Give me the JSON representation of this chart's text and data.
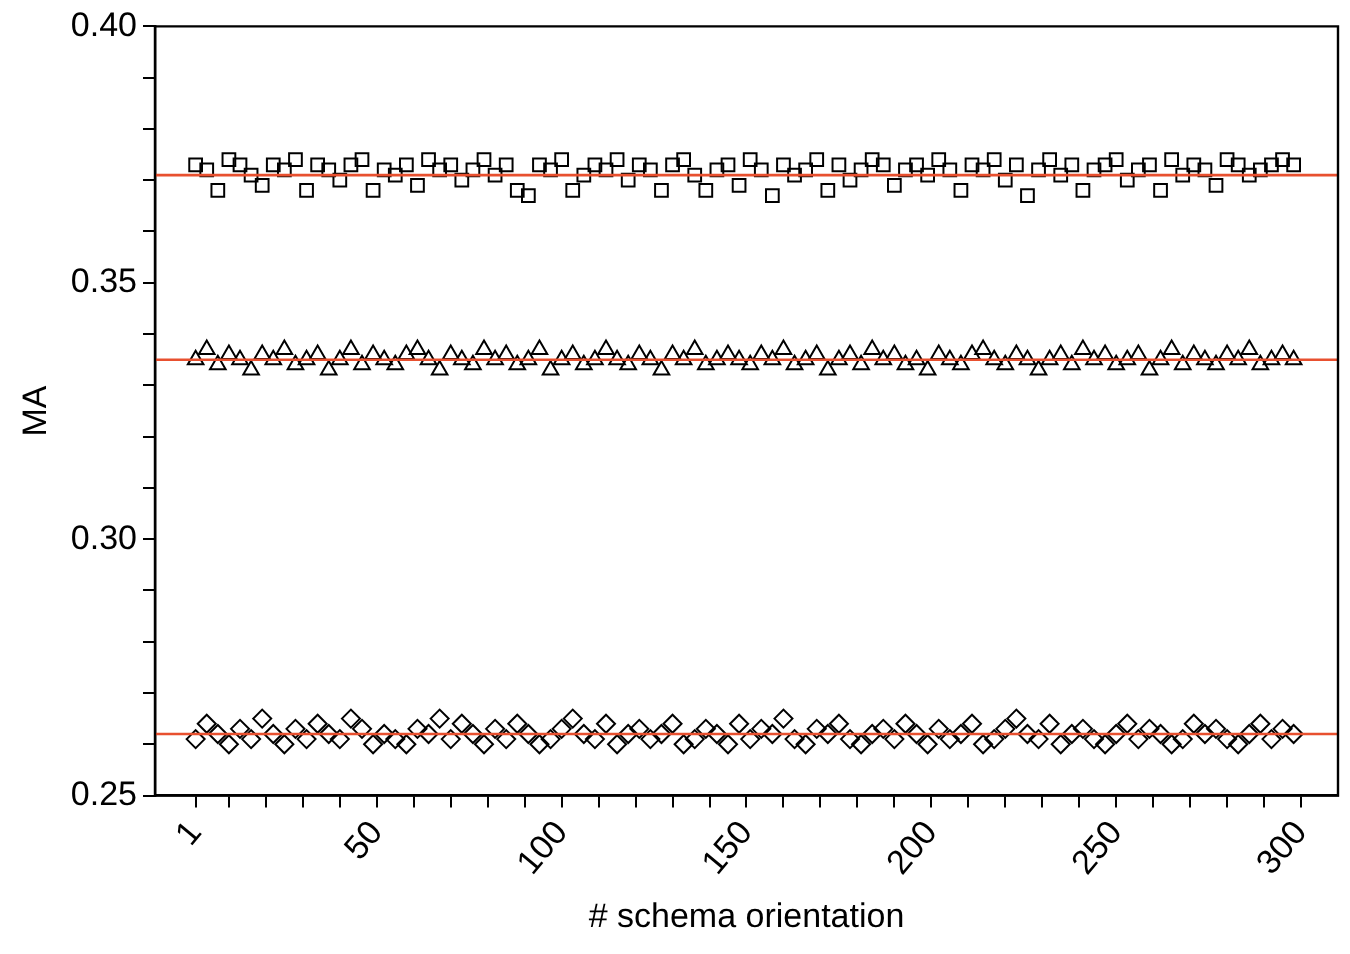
{
  "chart_data": {
    "type": "scatter",
    "xlabel": "# schema orientation",
    "ylabel": "MA",
    "x": [
      1,
      4,
      7,
      10,
      13,
      16,
      19,
      22,
      25,
      28,
      31,
      34,
      37,
      40,
      43,
      46,
      49,
      52,
      55,
      58,
      61,
      64,
      67,
      70,
      73,
      76,
      79,
      82,
      85,
      88,
      91,
      94,
      97,
      100,
      103,
      106,
      109,
      112,
      115,
      118,
      121,
      124,
      127,
      130,
      133,
      136,
      139,
      142,
      145,
      148,
      151,
      154,
      157,
      160,
      163,
      166,
      169,
      172,
      175,
      178,
      181,
      184,
      187,
      190,
      193,
      196,
      199,
      202,
      205,
      208,
      211,
      214,
      217,
      220,
      223,
      226,
      229,
      232,
      235,
      238,
      241,
      244,
      247,
      250,
      253,
      256,
      259,
      262,
      265,
      268,
      271,
      274,
      277,
      280,
      283,
      286,
      289,
      292,
      295,
      298
    ],
    "series": [
      {
        "color": "#000000",
        "marker": "square",
        "values": [
          0.373,
          0.372,
          0.368,
          0.374,
          0.373,
          0.371,
          0.369,
          0.373,
          0.372,
          0.374,
          0.368,
          0.373,
          0.372,
          0.37,
          0.373,
          0.374,
          0.368,
          0.372,
          0.371,
          0.373,
          0.369,
          0.374,
          0.372,
          0.373,
          0.37,
          0.372,
          0.374,
          0.371,
          0.373,
          0.368,
          0.367,
          0.373,
          0.372,
          0.374,
          0.368,
          0.371,
          0.373,
          0.372,
          0.374,
          0.37,
          0.373,
          0.372,
          0.368,
          0.373,
          0.374,
          0.371,
          0.368,
          0.372,
          0.373,
          0.369,
          0.374,
          0.372,
          0.367,
          0.373,
          0.371,
          0.372,
          0.374,
          0.368,
          0.373,
          0.37,
          0.372,
          0.374,
          0.373,
          0.369,
          0.372,
          0.373,
          0.371,
          0.374,
          0.372,
          0.368,
          0.373,
          0.372,
          0.374,
          0.37,
          0.373,
          0.367,
          0.372,
          0.374,
          0.371,
          0.373,
          0.368,
          0.372,
          0.373,
          0.374,
          0.37,
          0.372,
          0.373,
          0.368,
          0.374,
          0.371,
          0.373,
          0.372,
          0.369,
          0.374,
          0.373,
          0.371,
          0.372,
          0.373,
          0.374,
          0.373
        ]
      },
      {
        "color": "#000000",
        "marker": "triangle",
        "values": [
          0.335,
          0.337,
          0.334,
          0.336,
          0.335,
          0.333,
          0.336,
          0.335,
          0.337,
          0.334,
          0.335,
          0.336,
          0.333,
          0.335,
          0.337,
          0.334,
          0.336,
          0.335,
          0.334,
          0.336,
          0.337,
          0.335,
          0.333,
          0.336,
          0.335,
          0.334,
          0.337,
          0.335,
          0.336,
          0.334,
          0.335,
          0.337,
          0.333,
          0.335,
          0.336,
          0.334,
          0.335,
          0.337,
          0.335,
          0.334,
          0.336,
          0.335,
          0.333,
          0.336,
          0.335,
          0.337,
          0.334,
          0.335,
          0.336,
          0.335,
          0.334,
          0.336,
          0.335,
          0.337,
          0.334,
          0.335,
          0.336,
          0.333,
          0.335,
          0.336,
          0.334,
          0.337,
          0.335,
          0.336,
          0.334,
          0.335,
          0.333,
          0.336,
          0.335,
          0.334,
          0.336,
          0.337,
          0.335,
          0.334,
          0.336,
          0.335,
          0.333,
          0.335,
          0.336,
          0.334,
          0.337,
          0.335,
          0.336,
          0.334,
          0.335,
          0.336,
          0.333,
          0.335,
          0.337,
          0.334,
          0.336,
          0.335,
          0.334,
          0.336,
          0.335,
          0.337,
          0.334,
          0.335,
          0.336,
          0.335
        ]
      },
      {
        "color": "#000000",
        "marker": "diamond",
        "values": [
          0.261,
          0.264,
          0.262,
          0.26,
          0.263,
          0.261,
          0.265,
          0.262,
          0.26,
          0.263,
          0.261,
          0.264,
          0.262,
          0.261,
          0.265,
          0.263,
          0.26,
          0.262,
          0.261,
          0.26,
          0.263,
          0.262,
          0.265,
          0.261,
          0.264,
          0.262,
          0.26,
          0.263,
          0.261,
          0.264,
          0.262,
          0.26,
          0.261,
          0.263,
          0.265,
          0.262,
          0.261,
          0.264,
          0.26,
          0.262,
          0.263,
          0.261,
          0.262,
          0.264,
          0.26,
          0.261,
          0.263,
          0.262,
          0.26,
          0.264,
          0.261,
          0.263,
          0.262,
          0.265,
          0.261,
          0.26,
          0.263,
          0.262,
          0.264,
          0.261,
          0.26,
          0.262,
          0.263,
          0.261,
          0.264,
          0.262,
          0.26,
          0.263,
          0.261,
          0.262,
          0.264,
          0.26,
          0.261,
          0.263,
          0.265,
          0.262,
          0.261,
          0.264,
          0.26,
          0.262,
          0.263,
          0.261,
          0.26,
          0.262,
          0.264,
          0.261,
          0.263,
          0.262,
          0.26,
          0.261,
          0.264,
          0.262,
          0.263,
          0.261,
          0.26,
          0.262,
          0.264,
          0.261,
          0.263,
          0.262
        ]
      }
    ],
    "ref_lines": [
      {
        "axis": "y",
        "value": 0.371,
        "color": "#e8502f"
      },
      {
        "axis": "y",
        "value": 0.335,
        "color": "#e8502f"
      },
      {
        "axis": "y",
        "value": 0.262,
        "color": "#e8502f"
      }
    ],
    "xlim": [
      -10,
      310
    ],
    "xticks": [
      1,
      {
        "value": 10,
        "label": null
      },
      {
        "value": 20,
        "label": null
      },
      {
        "value": 30,
        "label": null
      },
      {
        "value": 40,
        "label": null
      },
      50,
      {
        "value": 60,
        "label": null
      },
      {
        "value": 70,
        "label": null
      },
      {
        "value": 80,
        "label": null
      },
      {
        "value": 90,
        "label": null
      },
      100,
      {
        "value": 110,
        "label": null
      },
      {
        "value": 120,
        "label": null
      },
      {
        "value": 130,
        "label": null
      },
      {
        "value": 140,
        "label": null
      },
      150,
      {
        "value": 160,
        "label": null
      },
      {
        "value": 170,
        "label": null
      },
      {
        "value": 180,
        "label": null
      },
      {
        "value": 190,
        "label": null
      },
      200,
      {
        "value": 210,
        "label": null
      },
      {
        "value": 220,
        "label": null
      },
      {
        "value": 230,
        "label": null
      },
      {
        "value": 240,
        "label": null
      },
      250,
      {
        "value": 260,
        "label": null
      },
      {
        "value": 270,
        "label": null
      },
      {
        "value": 280,
        "label": null
      },
      {
        "value": 290,
        "label": null
      },
      300
    ],
    "ylim": [
      0.25,
      0.4
    ],
    "yticks": [
      {
        "value": 0.25,
        "label": "0.25"
      },
      {
        "value": 0.26,
        "label": null
      },
      {
        "value": 0.27,
        "label": null
      },
      {
        "value": 0.28,
        "label": null
      },
      {
        "value": 0.29,
        "label": null
      },
      {
        "value": 0.3,
        "label": "0.30"
      },
      {
        "value": 0.31,
        "label": null
      },
      {
        "value": 0.32,
        "label": null
      },
      {
        "value": 0.33,
        "label": null
      },
      {
        "value": 0.34,
        "label": null
      },
      {
        "value": 0.35,
        "label": "0.35"
      },
      {
        "value": 0.36,
        "label": null
      },
      {
        "value": 0.37,
        "label": null
      },
      {
        "value": 0.38,
        "label": null
      },
      {
        "value": 0.39,
        "label": null
      },
      {
        "value": 0.4,
        "label": "0.40"
      }
    ],
    "grid": false,
    "legend": false
  }
}
